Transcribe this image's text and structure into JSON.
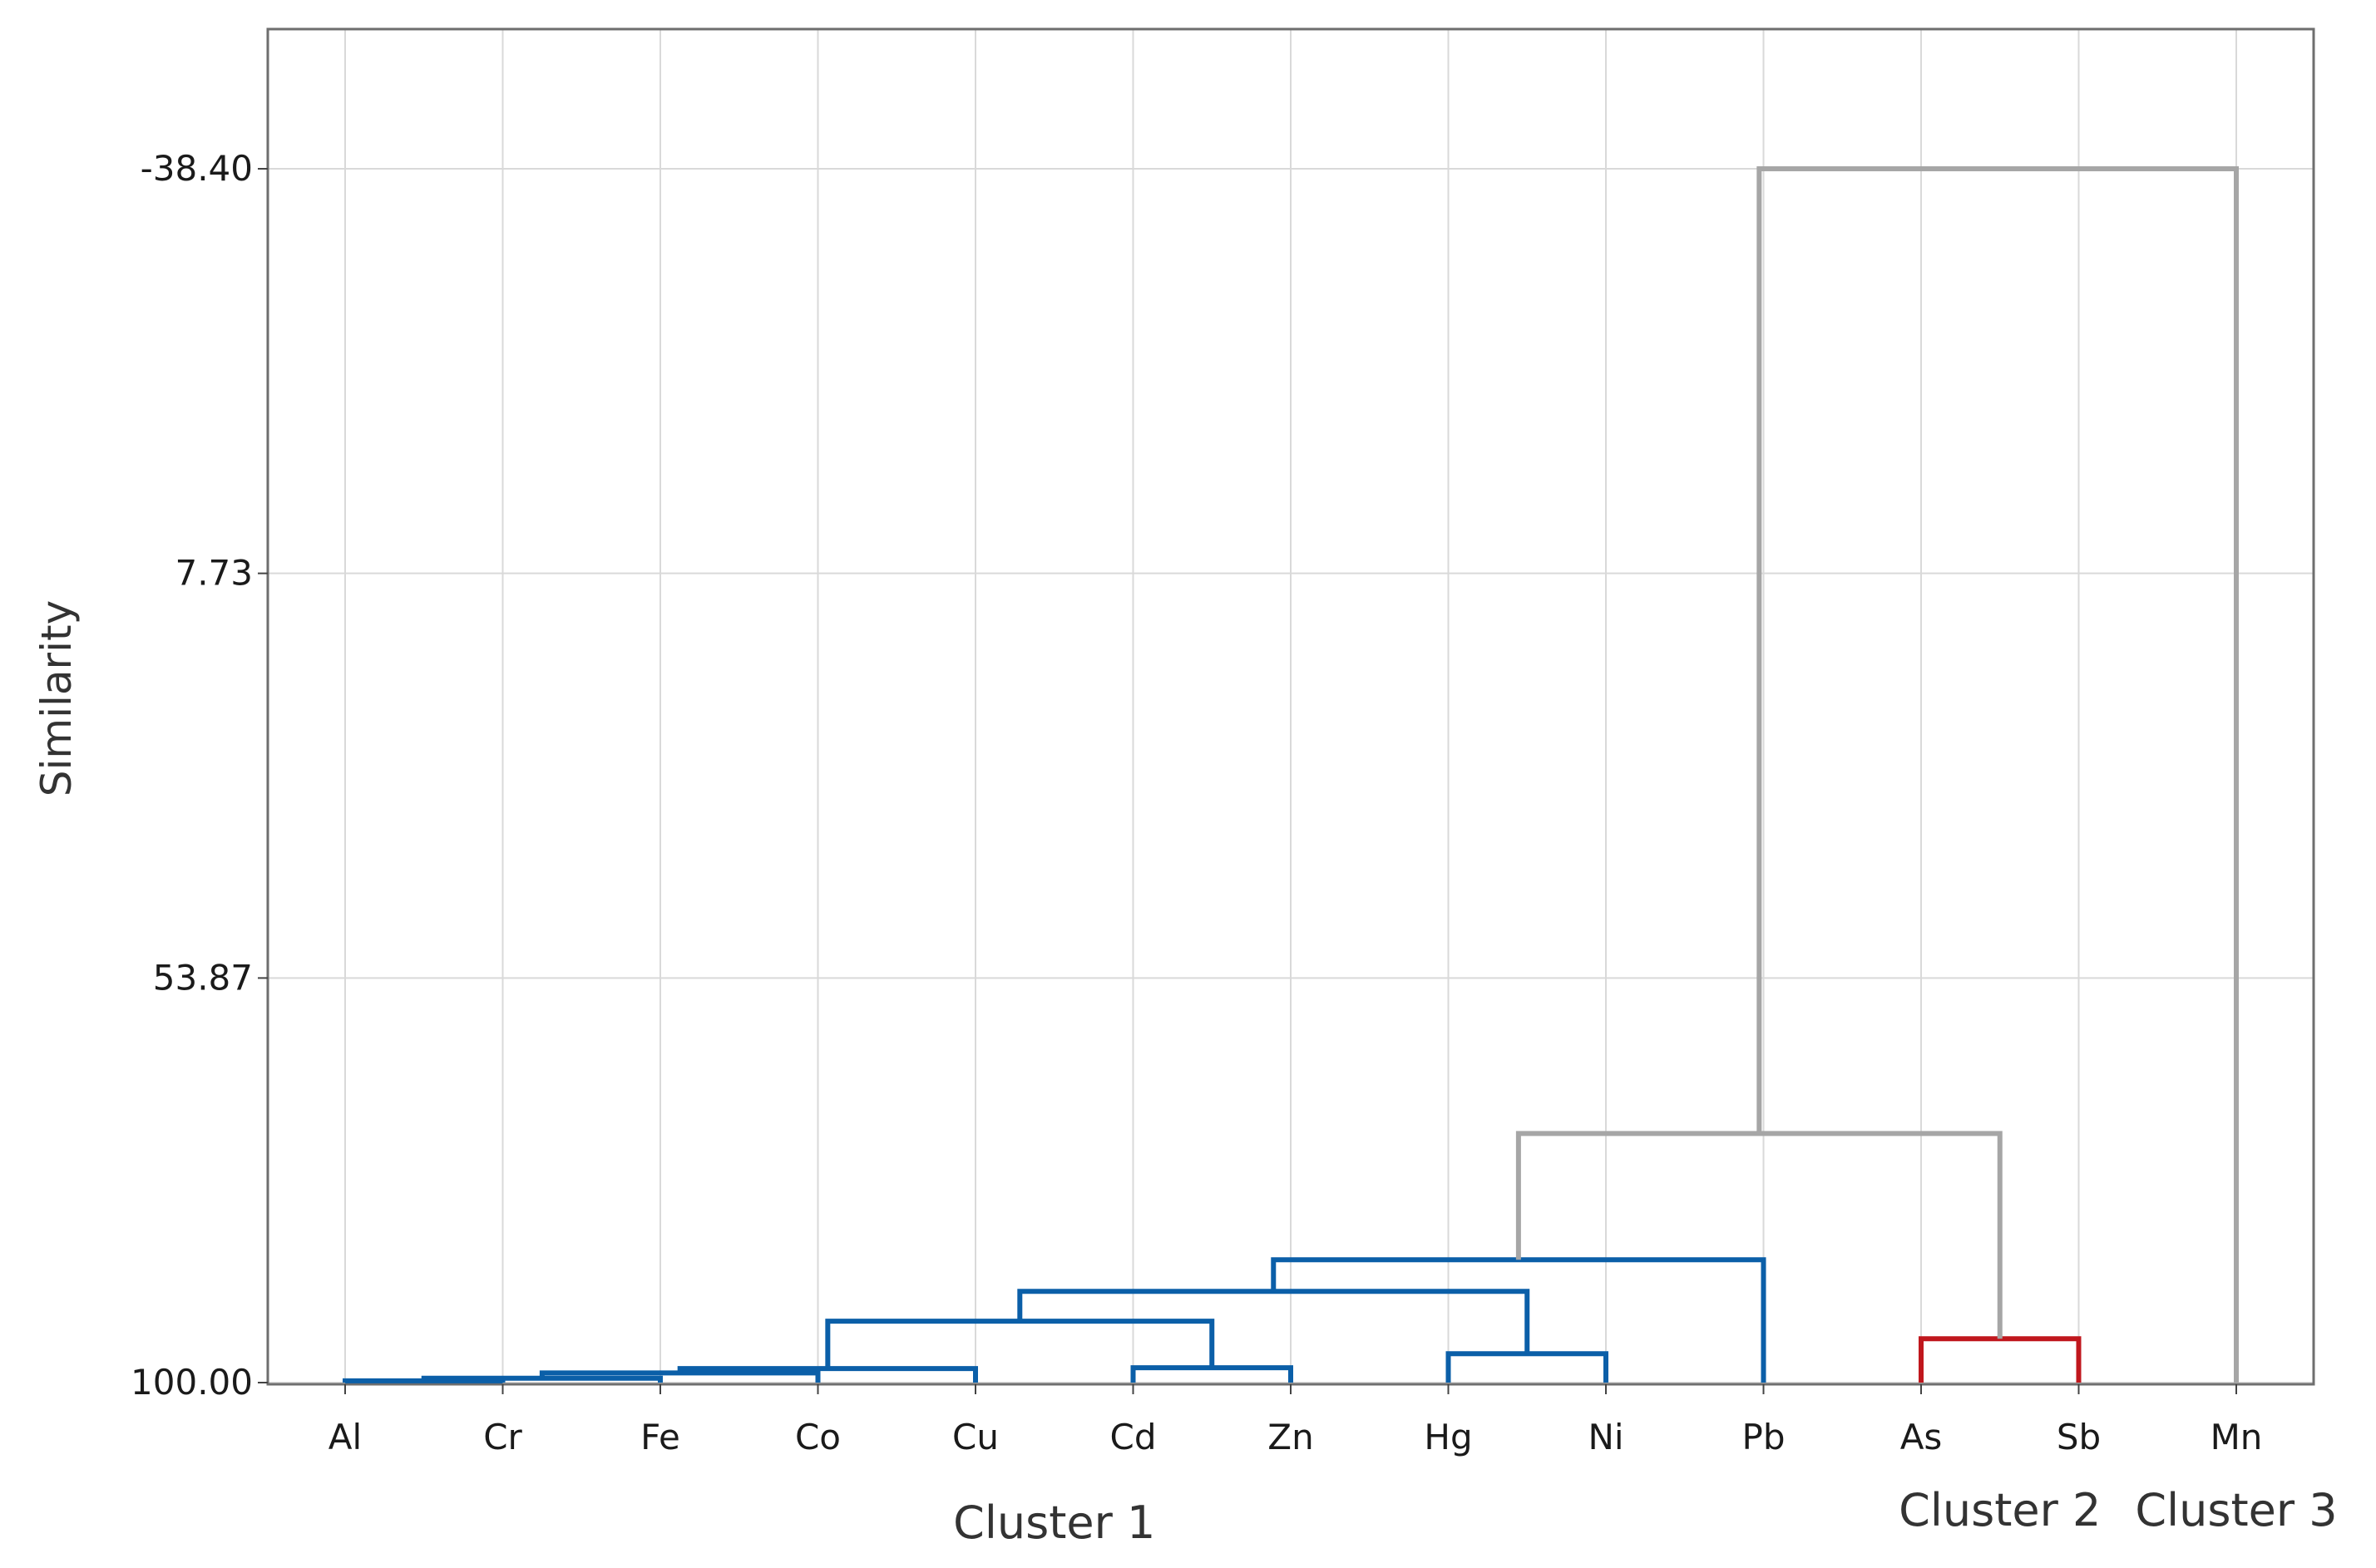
{
  "chart_data": {
    "type": "dendrogram",
    "title": "",
    "xlabel": "",
    "ylabel": "Similarity",
    "ylim": [
      -38.4,
      100.0
    ],
    "y_inverted": true,
    "y_ticks": [
      {
        "value": -38.4,
        "label": "-38.40"
      },
      {
        "value": 7.73,
        "label": "7.73"
      },
      {
        "value": 53.87,
        "label": "53.87"
      },
      {
        "value": 100.0,
        "label": "100.00"
      }
    ],
    "leaves": [
      "Al",
      "Cr",
      "Fe",
      "Co",
      "Cu",
      "Cd",
      "Zn",
      "Hg",
      "Ni",
      "Pb",
      "As",
      "Sb",
      "Mn"
    ],
    "grid": true,
    "colors": {
      "cluster1": "#0b5fa8",
      "cluster2": "#c0171d",
      "cluster3": "#118a2e",
      "inter": "#a6a6a6"
    },
    "merges": [
      {
        "a": "Al",
        "b": "Cr",
        "similarity": 99.8,
        "color": "cluster1"
      },
      {
        "a": "Al+Cr",
        "b": "Fe",
        "similarity": 99.5,
        "color": "cluster1"
      },
      {
        "a": "Al+Cr+Fe",
        "b": "Co",
        "similarity": 98.9,
        "color": "cluster1"
      },
      {
        "a": "Al+Cr+Fe+Co",
        "b": "Cu",
        "similarity": 98.4,
        "color": "cluster1"
      },
      {
        "a": "Cd",
        "b": "Zn",
        "similarity": 98.3,
        "color": "cluster1"
      },
      {
        "a": "Hg",
        "b": "Ni",
        "similarity": 96.7,
        "color": "cluster1"
      },
      {
        "a": "Al-Cu",
        "b": "Cd+Zn",
        "similarity": 93.0,
        "color": "cluster1"
      },
      {
        "a": "Al-Zn",
        "b": "Hg+Ni",
        "similarity": 89.6,
        "color": "cluster1"
      },
      {
        "a": "Al-Ni",
        "b": "Pb",
        "similarity": 86.0,
        "color": "cluster1"
      },
      {
        "a": "As",
        "b": "Sb",
        "similarity": 95.0,
        "color": "cluster2"
      },
      {
        "a": "Cluster 1",
        "b": "As+Sb",
        "similarity": 71.6,
        "color": "inter"
      },
      {
        "a": "Cluster 1+2",
        "b": "Mn",
        "similarity": -38.4,
        "color": "inter"
      }
    ],
    "clusters": [
      {
        "label": "Cluster 1",
        "leaves": [
          "Al",
          "Cr",
          "Fe",
          "Co",
          "Cu",
          "Cd",
          "Zn",
          "Hg",
          "Ni",
          "Pb"
        ],
        "color": "cluster1"
      },
      {
        "label": "Cluster 2",
        "leaves": [
          "As",
          "Sb"
        ],
        "color": "cluster2"
      },
      {
        "label": "Cluster 3",
        "leaves": [
          "Mn"
        ],
        "color": "cluster3"
      }
    ]
  }
}
